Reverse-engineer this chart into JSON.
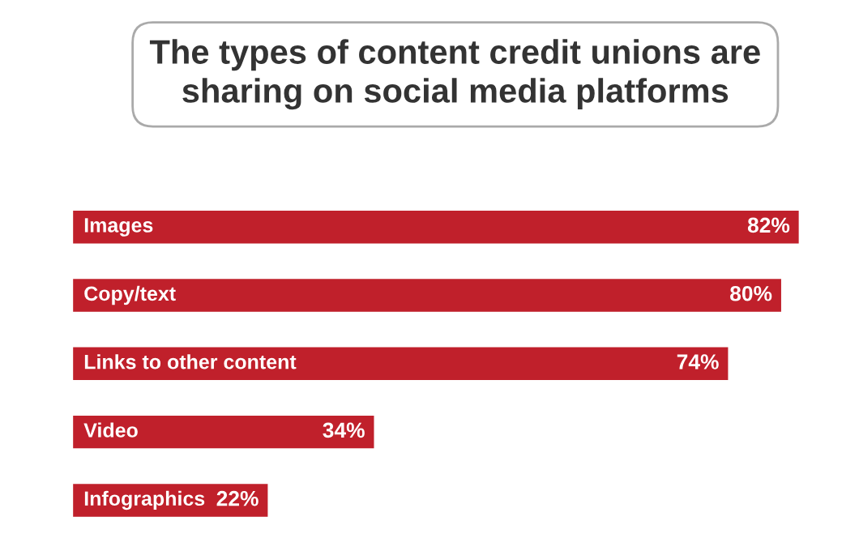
{
  "chart_data": {
    "type": "bar",
    "orientation": "horizontal",
    "title": "The types of content credit unions are\nsharing on social media platforms",
    "categories": [
      "Images",
      "Copy/text",
      "Links to other content",
      "Video",
      "Infographics"
    ],
    "values": [
      82,
      80,
      74,
      34,
      22
    ],
    "color": "#c0202b",
    "value_labels": [
      "82%",
      "80%",
      "74%",
      "34%",
      "22%"
    ]
  }
}
